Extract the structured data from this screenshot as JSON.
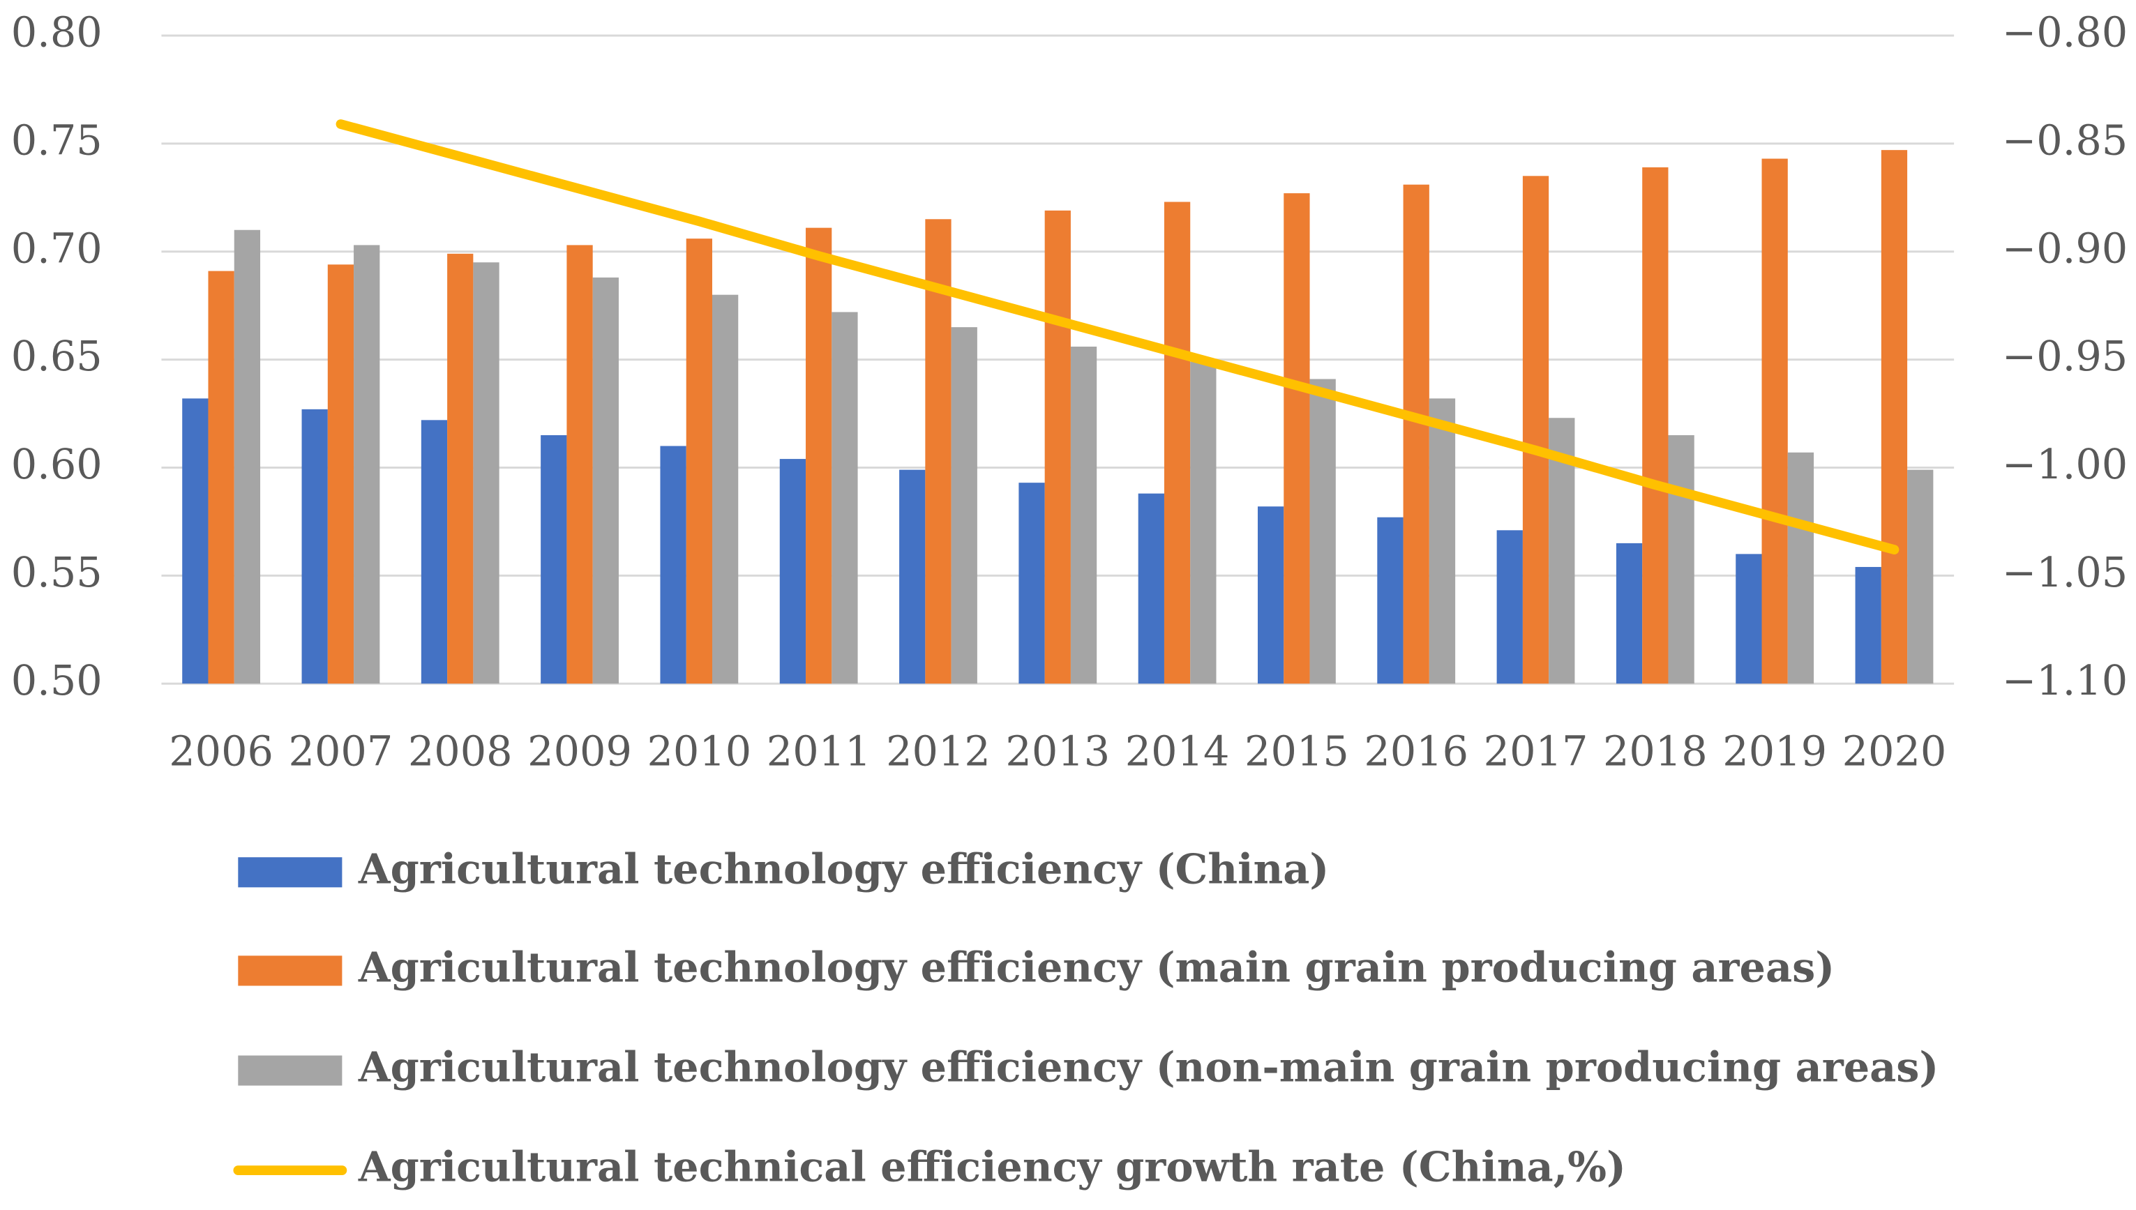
{
  "chart_data": {
    "type": "bar",
    "categories": [
      "2006",
      "2007",
      "2008",
      "2009",
      "2010",
      "2011",
      "2012",
      "2013",
      "2014",
      "2015",
      "2016",
      "2017",
      "2018",
      "2019",
      "2020"
    ],
    "series": [
      {
        "name": "Agricultural technology efficiency (China)",
        "color": "#4472c4",
        "type": "bar",
        "values": [
          0.632,
          0.627,
          0.622,
          0.615,
          0.61,
          0.604,
          0.599,
          0.593,
          0.588,
          0.582,
          0.577,
          0.571,
          0.565,
          0.56,
          0.554
        ]
      },
      {
        "name": "Agricultural technology efficiency (main grain producing areas)",
        "color": "#ed7d31",
        "type": "bar",
        "values": [
          0.691,
          0.694,
          0.699,
          0.703,
          0.706,
          0.711,
          0.715,
          0.719,
          0.723,
          0.727,
          0.731,
          0.735,
          0.739,
          0.743,
          0.747
        ]
      },
      {
        "name": "Agricultural technology efficiency (non-main grain producing areas)",
        "color": "#a5a5a5",
        "type": "bar",
        "values": [
          0.71,
          0.703,
          0.695,
          0.688,
          0.68,
          0.672,
          0.665,
          0.656,
          0.649,
          0.641,
          0.632,
          0.623,
          0.615,
          0.607,
          0.599
        ]
      },
      {
        "name": "Agricultural technical efficiency growth rate (China,%)",
        "color": "#ffc000",
        "type": "line",
        "axis": "y2",
        "values": [
          null,
          -0.841,
          -0.856,
          -0.871,
          -0.886,
          -0.902,
          -0.917,
          -0.932,
          -0.947,
          -0.962,
          -0.977,
          -0.992,
          -1.008,
          -1.023,
          -1.038
        ]
      }
    ],
    "ylim": [
      0.5,
      0.8
    ],
    "yticks": [
      {
        "value": 0.5,
        "label": "0.50"
      },
      {
        "value": 0.55,
        "label": "0.55"
      },
      {
        "value": 0.6,
        "label": "0.60"
      },
      {
        "value": 0.65,
        "label": "0.65"
      },
      {
        "value": 0.7,
        "label": "0.70"
      },
      {
        "value": 0.75,
        "label": "0.75"
      },
      {
        "value": 0.8,
        "label": "0.80"
      }
    ],
    "y2lim": [
      -1.1,
      -0.8
    ],
    "y2ticks": [
      {
        "value": -1.1,
        "label": "−1.10"
      },
      {
        "value": -1.05,
        "label": "−1.05"
      },
      {
        "value": -1.0,
        "label": "−1.00"
      },
      {
        "value": -0.95,
        "label": "−0.95"
      },
      {
        "value": -0.9,
        "label": "−0.90"
      },
      {
        "value": -0.85,
        "label": "−0.85"
      },
      {
        "value": -0.8,
        "label": "−0.80"
      }
    ],
    "grid": true,
    "legend": "bottom"
  }
}
